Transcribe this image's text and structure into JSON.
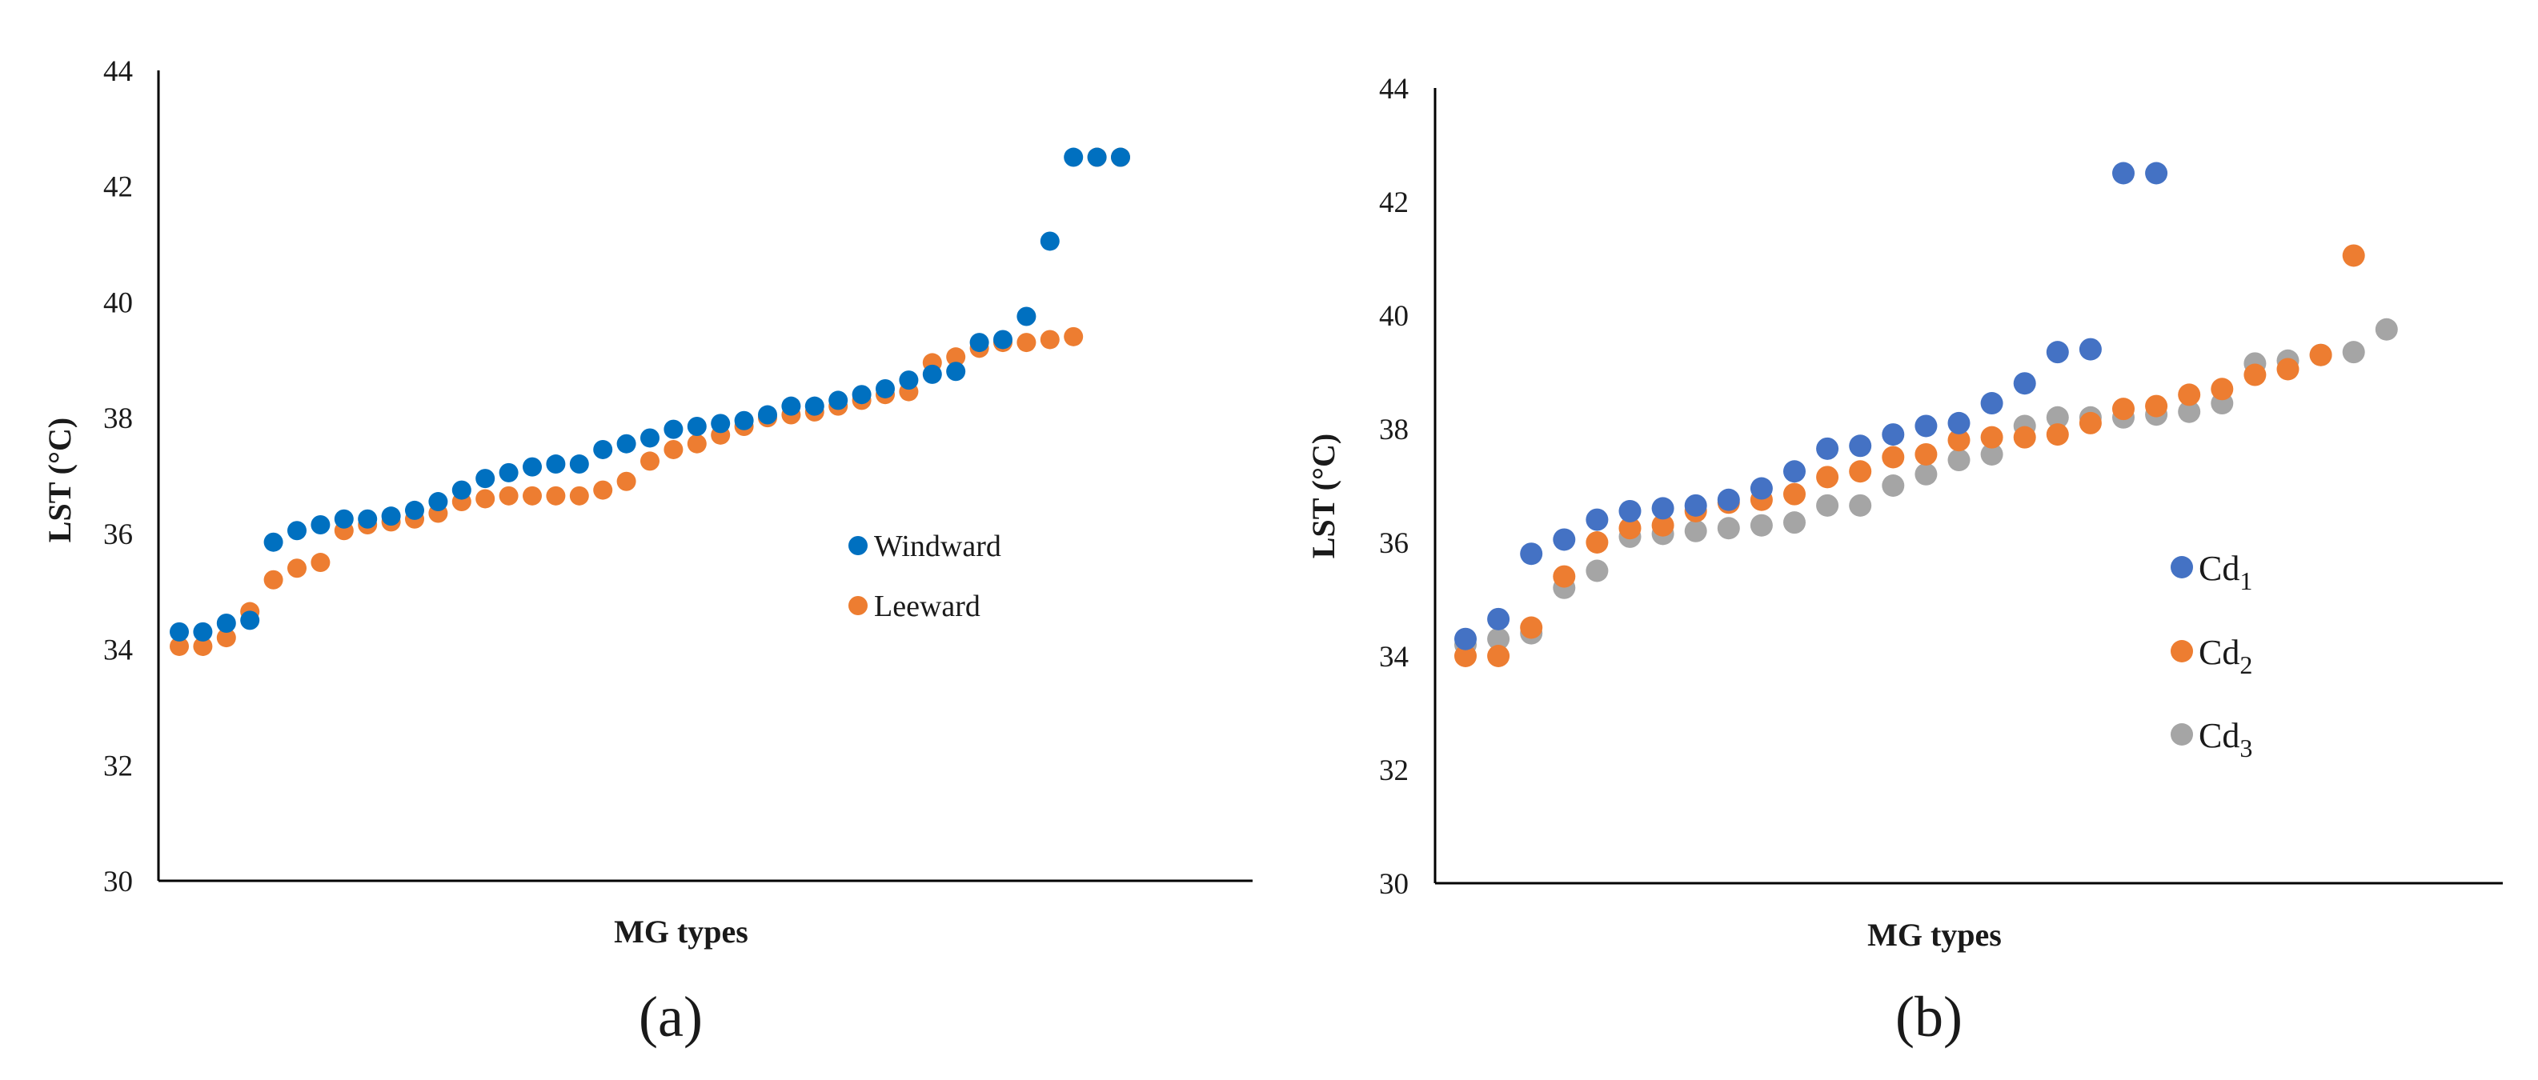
{
  "colors": {
    "windward": "#0070C0",
    "leeward": "#ED7D31",
    "cd1": "#4472C4",
    "cd2": "#ED7D31",
    "cd3": "#A5A5A5"
  },
  "panels": [
    {
      "label": "(a)"
    },
    {
      "label": "(b)"
    }
  ],
  "chart_data": [
    {
      "type": "scatter",
      "title": "",
      "panel_label": "(a)",
      "xlabel": "MG types",
      "ylabel": "LST  (°C)",
      "ylim": [
        30,
        44
      ],
      "yticks": [
        "30",
        "32",
        "34",
        "36",
        "38",
        "40",
        "42",
        "44"
      ],
      "legend_position": "center-right",
      "series": [
        {
          "name": "Windward",
          "color_key": "windward",
          "x": [
            1,
            2,
            3,
            4,
            5,
            6,
            7,
            8,
            9,
            10,
            11,
            12,
            13,
            14,
            15,
            16,
            17,
            18,
            19,
            20,
            21,
            22,
            23,
            24,
            25,
            26,
            27,
            28,
            29,
            30,
            31,
            32,
            33,
            34,
            35,
            36,
            37,
            38,
            39,
            40,
            41
          ],
          "y": [
            34.3,
            34.3,
            34.45,
            34.5,
            35.85,
            36.05,
            36.15,
            36.25,
            36.25,
            36.3,
            36.4,
            36.55,
            36.75,
            36.95,
            37.05,
            37.15,
            37.2,
            37.2,
            37.45,
            37.55,
            37.65,
            37.8,
            37.85,
            37.9,
            37.95,
            38.05,
            38.2,
            38.2,
            38.3,
            38.4,
            38.5,
            38.65,
            38.75,
            38.8,
            39.3,
            39.35,
            39.75,
            41.05,
            42.5,
            42.5,
            42.5
          ]
        },
        {
          "name": "Leeward",
          "color_key": "leeward",
          "x": [
            1,
            2,
            3,
            4,
            5,
            6,
            7,
            8,
            9,
            10,
            11,
            12,
            13,
            14,
            15,
            16,
            17,
            18,
            19,
            20,
            21,
            22,
            23,
            24,
            25,
            26,
            27,
            28,
            29,
            30,
            31,
            32,
            33,
            34,
            35,
            36,
            37,
            38,
            39,
            40,
            41
          ],
          "y": [
            34.05,
            34.05,
            34.2,
            34.65,
            35.2,
            35.4,
            35.5,
            36.05,
            36.15,
            36.2,
            36.25,
            36.35,
            36.55,
            36.6,
            36.65,
            36.65,
            36.65,
            36.65,
            36.75,
            36.9,
            37.25,
            37.45,
            37.55,
            37.7,
            37.85,
            38.0,
            38.05,
            38.1,
            38.2,
            38.3,
            38.4,
            38.45,
            38.95,
            39.05,
            39.2,
            39.3,
            39.3,
            39.35,
            39.4,
            42.5,
            42.5
          ]
        }
      ]
    },
    {
      "type": "scatter",
      "title": "",
      "panel_label": "(b)",
      "xlabel": "MG types",
      "ylabel": "LST  (°C)",
      "ylim": [
        30,
        44
      ],
      "yticks": [
        "30",
        "32",
        "34",
        "36",
        "38",
        "40",
        "42",
        "44"
      ],
      "legend_position": "center-right",
      "series": [
        {
          "name": "Cd",
          "subscript": "1",
          "color_key": "cd1",
          "x": [
            1,
            2,
            3,
            4,
            5,
            6,
            7,
            8,
            9,
            10,
            11,
            12,
            13,
            14,
            15,
            16,
            17,
            18,
            19,
            20,
            21,
            22
          ],
          "y": [
            34.3,
            34.65,
            35.8,
            36.05,
            36.4,
            36.55,
            36.6,
            36.65,
            36.75,
            36.95,
            37.25,
            37.65,
            37.7,
            37.9,
            38.05,
            38.1,
            38.45,
            38.8,
            39.35,
            39.4,
            42.5,
            42.5
          ]
        },
        {
          "name": "Cd",
          "subscript": "2",
          "color_key": "cd2",
          "x": [
            1,
            2,
            3,
            4,
            5,
            6,
            7,
            8,
            9,
            10,
            11,
            12,
            13,
            14,
            15,
            16,
            17,
            18,
            19,
            20,
            21,
            22,
            23,
            24,
            25,
            26,
            27,
            28
          ],
          "y": [
            34.0,
            34.0,
            34.5,
            35.4,
            36.0,
            36.25,
            36.3,
            36.55,
            36.7,
            36.75,
            36.85,
            37.15,
            37.25,
            37.5,
            37.55,
            37.8,
            37.85,
            37.85,
            37.9,
            38.1,
            38.35,
            38.4,
            38.6,
            38.7,
            38.95,
            39.05,
            39.3,
            41.05
          ]
        },
        {
          "name": "Cd",
          "subscript": "3",
          "color_key": "cd3",
          "x": [
            1,
            2,
            3,
            4,
            5,
            6,
            7,
            8,
            9,
            10,
            11,
            12,
            13,
            14,
            15,
            16,
            17,
            18,
            19,
            20,
            21,
            22,
            23,
            24,
            25,
            26,
            27,
            28,
            29
          ],
          "y": [
            34.2,
            34.3,
            34.4,
            35.2,
            35.5,
            36.1,
            36.15,
            36.2,
            36.25,
            36.3,
            36.35,
            36.65,
            36.65,
            37.0,
            37.2,
            37.45,
            37.55,
            38.05,
            38.2,
            38.2,
            38.2,
            38.25,
            38.3,
            38.45,
            39.15,
            39.2,
            39.3,
            39.35,
            39.75
          ]
        }
      ]
    }
  ]
}
